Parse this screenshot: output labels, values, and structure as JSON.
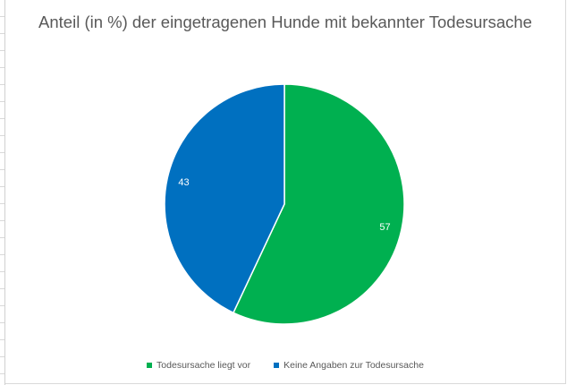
{
  "chart_data": {
    "type": "pie",
    "title": "Anteil (in %) der eingetragenen Hunde mit bekannter Todesursache",
    "categories": [
      "Todesursache liegt vor",
      "Keine Angaben zur Todesursache"
    ],
    "values": [
      57,
      43
    ],
    "colors": [
      "#00b050",
      "#0070c0"
    ],
    "data_labels": [
      "57",
      "43"
    ],
    "legend_position": "bottom",
    "start_angle_deg": 0,
    "direction": "clockwise"
  }
}
